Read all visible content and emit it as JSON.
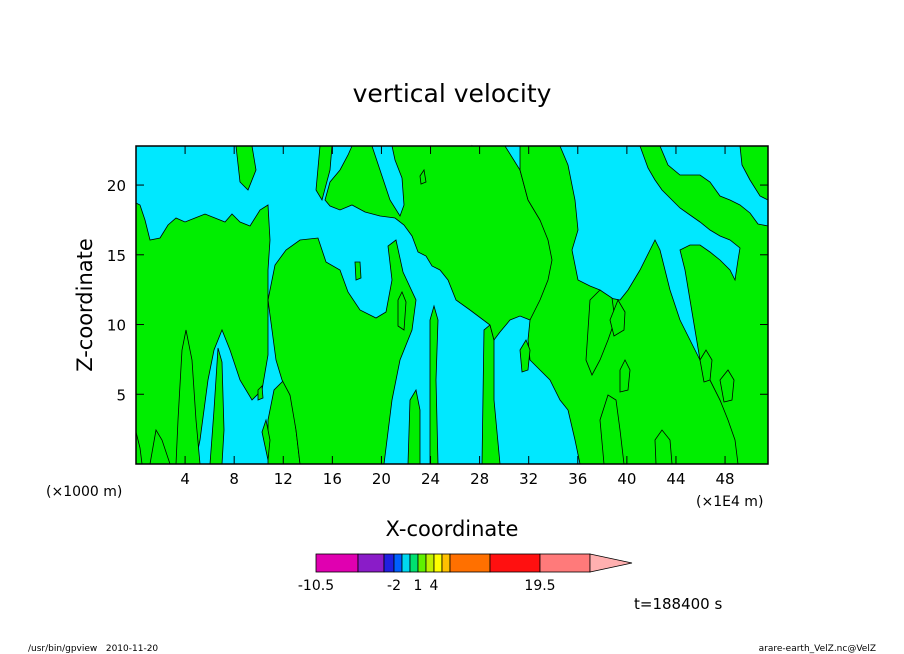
{
  "chart_data": {
    "type": "heatmap",
    "title": "vertical velocity",
    "xlabel": "X-coordinate",
    "ylabel": "Z-coordinate",
    "x_unit_left": "(×1000 m)",
    "x_unit_right": "(×1E4 m)",
    "xlim": [
      0,
      51.5
    ],
    "ylim": [
      0,
      22.8
    ],
    "x_ticks": [
      4,
      8,
      12,
      16,
      20,
      24,
      28,
      32,
      36,
      40,
      44,
      48
    ],
    "y_ticks": [
      5,
      10,
      15,
      20
    ],
    "colors": {
      "negative_region": "#00e8ff",
      "positive_region": "#00ee00",
      "contour_line": "#000000"
    },
    "colorbar": {
      "colors": [
        "#e000b0",
        "#8a1cc8",
        "#2020e0",
        "#0060ff",
        "#00d8f0",
        "#00e070",
        "#60f000",
        "#c0f000",
        "#ffff00",
        "#ffc000",
        "#ff7000",
        "#ff1010",
        "#ff7a7a",
        "#ffb0b0"
      ],
      "labels": [
        "-10.5",
        "-2",
        "1",
        "4",
        "19.5"
      ]
    },
    "time_label": "t=188400 s"
  },
  "footer": {
    "left": "/usr/bin/gpview   2010-11-20",
    "right": "arare-earth_VelZ.nc@VelZ"
  }
}
